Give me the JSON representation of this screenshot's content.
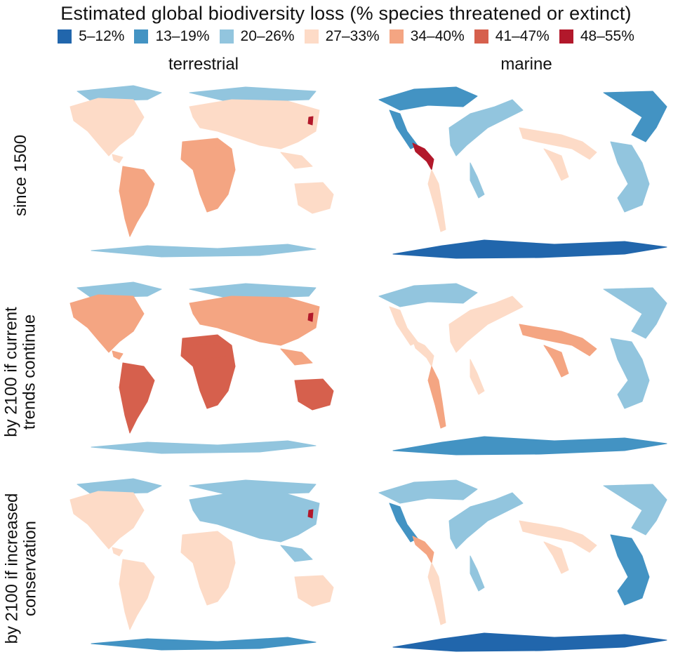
{
  "title": "Estimated global biodiversity loss (% species threatened or extinct)",
  "legend": [
    {
      "label": "5–12%",
      "color": "#2166ac"
    },
    {
      "label": "13–19%",
      "color": "#4393c3"
    },
    {
      "label": "20–26%",
      "color": "#92c5de"
    },
    {
      "label": "27–33%",
      "color": "#fddbc7"
    },
    {
      "label": "34–40%",
      "color": "#f4a582"
    },
    {
      "label": "41–47%",
      "color": "#d6604d"
    },
    {
      "label": "48–55%",
      "color": "#b2182b"
    }
  ],
  "columns": {
    "terrestrial": "terrestrial",
    "marine": "marine"
  },
  "rows": {
    "since_1500": "since 1500",
    "current_line1": "by 2100 if current",
    "current_line2": "trends continue",
    "conservation_line1": "by 2100 if increased",
    "conservation_line2": "conservation"
  },
  "panels": {
    "terrestrial_1500": {
      "base": "#fddbc7",
      "north": "#92c5de",
      "africa": "#f4a582",
      "africa_core": "#f4a582",
      "south_america": "#f4a582",
      "australia": "#fddbc7",
      "asia": "#fddbc7",
      "antarctica": "#92c5de",
      "hotspot": "#b2182b"
    },
    "terrestrial_current": {
      "base": "#f4a582",
      "north": "#92c5de",
      "africa": "#d6604d",
      "africa_core": "#d6604d",
      "south_america": "#d6604d",
      "australia": "#d6604d",
      "asia": "#f4a582",
      "antarctica": "#92c5de",
      "hotspot": "#b2182b"
    },
    "terrestrial_conservation": {
      "base": "#fddbc7",
      "north": "#92c5de",
      "africa": "#fddbc7",
      "africa_core": "#fddbc7",
      "south_america": "#fddbc7",
      "australia": "#fddbc7",
      "asia": "#92c5de",
      "antarctica": "#4393c3",
      "hotspot": "#b2182b"
    },
    "marine_1500": {
      "arctic": "#4393c3",
      "americas_west": "#4393c3",
      "pacific_hotspot": "#b2182b",
      "south_america_coast": "#fddbc7",
      "atlantic": "#92c5de",
      "indian": "#fddbc7",
      "west_pacific": "#92c5de",
      "southern_ocean": "#2166ac"
    },
    "marine_current": {
      "arctic": "#92c5de",
      "americas_west": "#fddbc7",
      "pacific_hotspot": "#fddbc7",
      "south_america_coast": "#f4a582",
      "atlantic": "#fddbc7",
      "indian": "#f4a582",
      "west_pacific": "#92c5de",
      "southern_ocean": "#4393c3"
    },
    "marine_conservation": {
      "arctic": "#92c5de",
      "americas_west": "#4393c3",
      "pacific_hotspot": "#f4a582",
      "south_america_coast": "#fddbc7",
      "atlantic": "#92c5de",
      "indian": "#fddbc7",
      "west_pacific": "#4393c3",
      "southern_ocean": "#2166ac"
    }
  }
}
